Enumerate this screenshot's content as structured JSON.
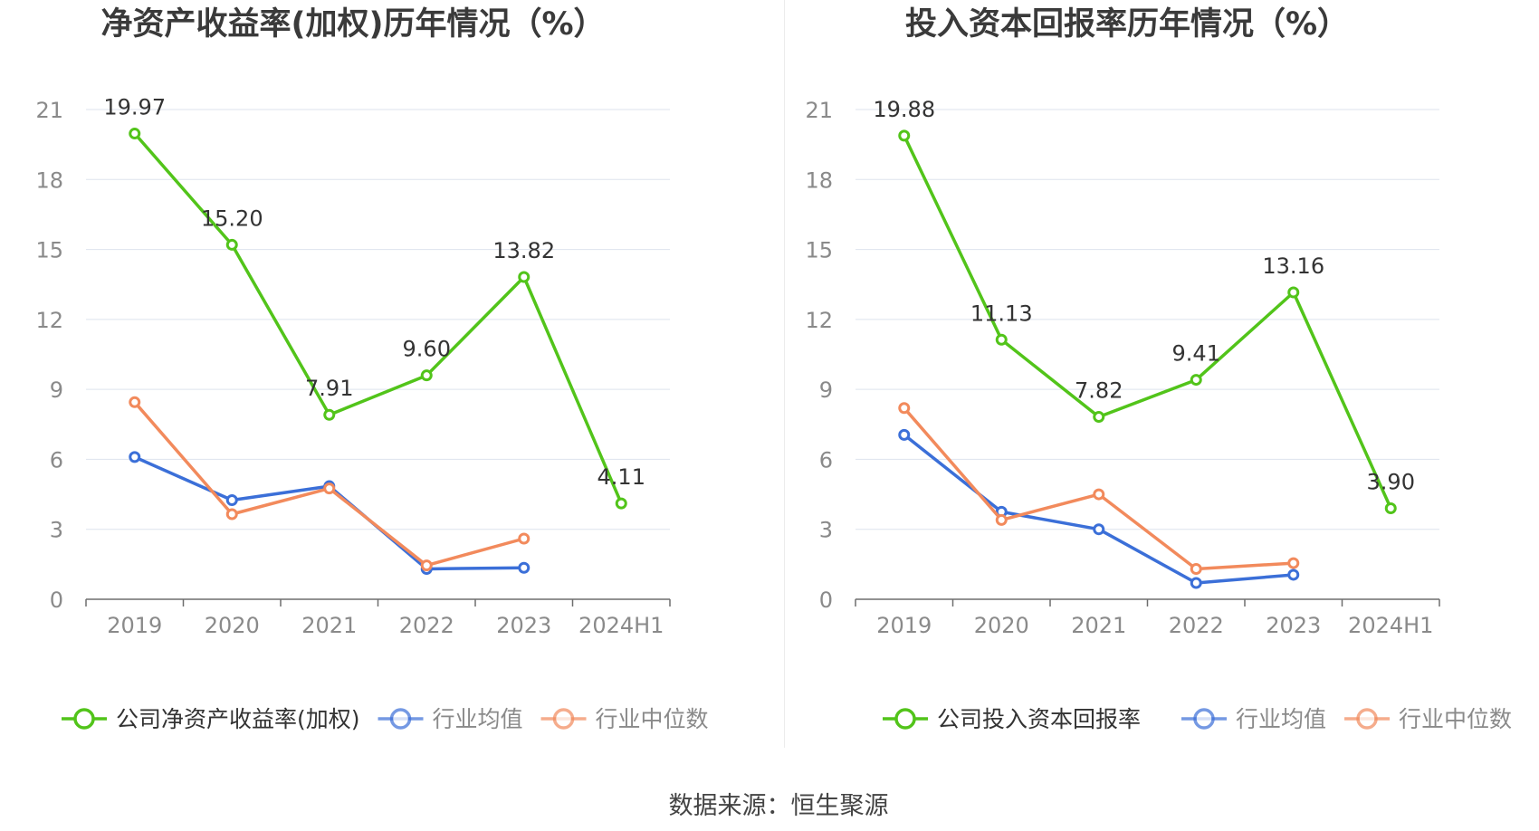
{
  "source_label": "数据来源：恒生聚源",
  "colors": {
    "company": "#52c41a",
    "industry_avg": "#3b6fd8",
    "industry_median": "#f28a5c",
    "grid": "#dde3ee",
    "axis": "#6e6e6e",
    "tick_text": "#8a8a8a",
    "label_text": "#333333"
  },
  "chart_data": [
    {
      "type": "line",
      "title": "净资产收益率(加权)历年情况（%）",
      "xlabel": "",
      "ylabel": "",
      "categories": [
        "2019",
        "2020",
        "2021",
        "2022",
        "2023",
        "2024H1"
      ],
      "ylim": [
        0,
        21
      ],
      "yticks": [
        0,
        3,
        6,
        9,
        12,
        15,
        18,
        21
      ],
      "grid": true,
      "legend_position": "bottom",
      "series": [
        {
          "name": "公司净资产收益率(加权)",
          "role": "company",
          "values": [
            19.97,
            15.2,
            7.91,
            9.6,
            13.82,
            4.11
          ],
          "data_labels": [
            "19.97",
            "15.20",
            "7.91",
            "9.60",
            "13.82",
            "4.11"
          ]
        },
        {
          "name": "行业均值",
          "role": "industry_avg",
          "values": [
            6.1,
            4.25,
            4.85,
            1.3,
            1.35,
            null
          ],
          "data_labels": []
        },
        {
          "name": "行业中位数",
          "role": "industry_median",
          "values": [
            8.45,
            3.65,
            4.75,
            1.45,
            2.6,
            null
          ],
          "data_labels": []
        }
      ]
    },
    {
      "type": "line",
      "title": "投入资本回报率历年情况（%）",
      "xlabel": "",
      "ylabel": "",
      "categories": [
        "2019",
        "2020",
        "2021",
        "2022",
        "2023",
        "2024H1"
      ],
      "ylim": [
        0,
        21
      ],
      "yticks": [
        0,
        3,
        6,
        9,
        12,
        15,
        18,
        21
      ],
      "grid": true,
      "legend_position": "bottom",
      "series": [
        {
          "name": "公司投入资本回报率",
          "role": "company",
          "values": [
            19.88,
            11.13,
            7.82,
            9.41,
            13.16,
            3.9
          ],
          "data_labels": [
            "19.88",
            "11.13",
            "7.82",
            "9.41",
            "13.16",
            "3.90"
          ]
        },
        {
          "name": "行业均值",
          "role": "industry_avg",
          "values": [
            7.05,
            3.75,
            3.0,
            0.7,
            1.05,
            null
          ],
          "data_labels": []
        },
        {
          "name": "行业中位数",
          "role": "industry_median",
          "values": [
            8.2,
            3.4,
            4.5,
            1.3,
            1.55,
            null
          ],
          "data_labels": []
        }
      ]
    }
  ]
}
